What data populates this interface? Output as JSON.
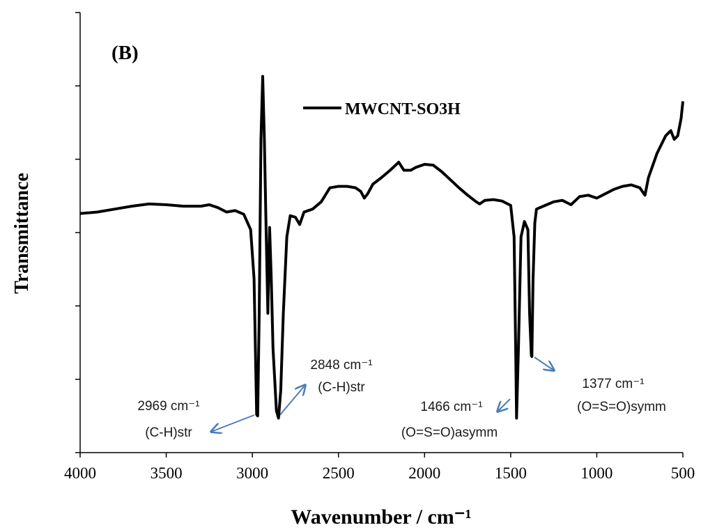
{
  "chart_data": {
    "type": "line",
    "panel_label": "(B)",
    "xlabel": "Wavenumber / cm⁻¹",
    "ylabel": "Transmittance",
    "xlim": [
      4000,
      500
    ],
    "xticks": [
      4000,
      3500,
      3000,
      2500,
      2000,
      1500,
      1000,
      500
    ],
    "ylim": [
      0,
      6
    ],
    "yticks": [
      0,
      1,
      2,
      3,
      4,
      5,
      6
    ],
    "x": [
      4000,
      3900,
      3800,
      3700,
      3600,
      3500,
      3400,
      3300,
      3250,
      3200,
      3150,
      3100,
      3050,
      3010,
      2990,
      2975,
      2969,
      2960,
      2950,
      2940,
      2930,
      2920,
      2910,
      2900,
      2890,
      2880,
      2860,
      2848,
      2835,
      2820,
      2800,
      2780,
      2750,
      2725,
      2700,
      2650,
      2600,
      2550,
      2500,
      2450,
      2400,
      2370,
      2350,
      2330,
      2300,
      2250,
      2200,
      2150,
      2120,
      2080,
      2050,
      2000,
      1950,
      1900,
      1850,
      1800,
      1750,
      1700,
      1680,
      1650,
      1600,
      1550,
      1500,
      1480,
      1470,
      1466,
      1455,
      1440,
      1420,
      1400,
      1390,
      1380,
      1377,
      1370,
      1360,
      1350,
      1300,
      1250,
      1200,
      1150,
      1100,
      1050,
      1000,
      950,
      900,
      850,
      800,
      750,
      720,
      700,
      650,
      600,
      570,
      550,
      530,
      510,
      500
    ],
    "series": [
      {
        "name": "MWCNT-SO3H",
        "color": "#000000",
        "values": [
          3.26,
          3.28,
          3.32,
          3.36,
          3.39,
          3.38,
          3.36,
          3.36,
          3.38,
          3.34,
          3.28,
          3.3,
          3.25,
          3.04,
          2.37,
          0.52,
          0.5,
          1.9,
          4.27,
          5.13,
          4.27,
          3.04,
          1.9,
          3.07,
          2.37,
          1.42,
          0.57,
          0.47,
          0.85,
          1.9,
          2.94,
          3.23,
          3.21,
          3.11,
          3.28,
          3.32,
          3.42,
          3.61,
          3.63,
          3.63,
          3.61,
          3.56,
          3.47,
          3.53,
          3.66,
          3.75,
          3.85,
          3.96,
          3.85,
          3.85,
          3.89,
          3.93,
          3.92,
          3.83,
          3.72,
          3.61,
          3.51,
          3.42,
          3.39,
          3.44,
          3.45,
          3.43,
          3.37,
          2.94,
          1.23,
          0.47,
          1.42,
          2.94,
          3.15,
          3.04,
          1.9,
          1.33,
          1.31,
          2.37,
          3.13,
          3.32,
          3.37,
          3.42,
          3.44,
          3.38,
          3.49,
          3.51,
          3.47,
          3.53,
          3.59,
          3.63,
          3.65,
          3.61,
          3.51,
          3.75,
          4.08,
          4.32,
          4.39,
          4.27,
          4.32,
          4.56,
          4.79
        ]
      }
    ],
    "annotations": [
      {
        "label": "2969 cm⁻¹",
        "note": "(C-H)str"
      },
      {
        "label": "2848 cm⁻¹",
        "note": "(C-H)str"
      },
      {
        "label": "1466 cm⁻¹",
        "note": "(O=S=O)asymm"
      },
      {
        "label": "1377 cm⁻¹",
        "note": "(O=S=O)symm"
      }
    ]
  }
}
